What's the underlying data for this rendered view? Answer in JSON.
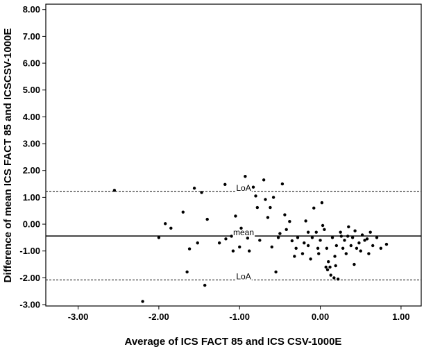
{
  "chart_data": {
    "type": "scatter",
    "xlabel": "Average of ICS FACT 85 and ICS CSV-1000E",
    "ylabel": "Difference of mean ICS FACT 85 and ICSCSV-1000E",
    "xlim": [
      -3.4,
      1.25
    ],
    "ylim": [
      -3.05,
      8.2
    ],
    "x_ticks": [
      "-3.00",
      "-2.00",
      "-1.00",
      "0.00",
      "1.00"
    ],
    "x_tick_values": [
      -3,
      -2,
      -1,
      0,
      1
    ],
    "y_ticks": [
      "8.00",
      "7.00",
      "6.00",
      "5.00",
      "4.00",
      "3.00",
      "2.00",
      "1.00",
      "0.00",
      "-1.00",
      "-2.00",
      "-3.00"
    ],
    "y_tick_values": [
      8,
      7,
      6,
      5,
      4,
      3,
      2,
      1,
      0,
      -1,
      -2,
      -3
    ],
    "lines": [
      {
        "label": "LoA",
        "value": 1.22,
        "style": "dashed",
        "label_x": -0.95
      },
      {
        "label": "mean",
        "value": -0.44,
        "style": "solid",
        "label_x": -0.95
      },
      {
        "label": "LoA",
        "value": -2.08,
        "style": "dashed",
        "label_x": -0.95
      }
    ],
    "grid": false,
    "legend": "none",
    "points": [
      [
        -2.55,
        1.26
      ],
      [
        -2.2,
        -2.88
      ],
      [
        -2.0,
        -0.5
      ],
      [
        -1.92,
        0.02
      ],
      [
        -1.85,
        -0.15
      ],
      [
        -1.7,
        0.45
      ],
      [
        -1.65,
        -1.78
      ],
      [
        -1.62,
        -0.92
      ],
      [
        -1.56,
        1.34
      ],
      [
        -1.52,
        -0.7
      ],
      [
        -1.47,
        1.18
      ],
      [
        -1.43,
        -2.28
      ],
      [
        -1.4,
        0.18
      ],
      [
        -1.25,
        -0.7
      ],
      [
        -1.18,
        1.48
      ],
      [
        -1.17,
        -0.55
      ],
      [
        -1.1,
        -0.45
      ],
      [
        -1.08,
        -1.0
      ],
      [
        -1.05,
        0.3
      ],
      [
        -1.0,
        -0.85
      ],
      [
        -0.98,
        -0.15
      ],
      [
        -0.93,
        1.78
      ],
      [
        -0.9,
        -0.52
      ],
      [
        -0.88,
        -1.0
      ],
      [
        -0.83,
        1.38
      ],
      [
        -0.8,
        1.05
      ],
      [
        -0.78,
        0.62
      ],
      [
        -0.75,
        -0.6
      ],
      [
        -0.7,
        1.65
      ],
      [
        -0.68,
        0.92
      ],
      [
        -0.65,
        0.25
      ],
      [
        -0.62,
        0.62
      ],
      [
        -0.6,
        -0.85
      ],
      [
        -0.58,
        1.0
      ],
      [
        -0.55,
        -1.78
      ],
      [
        -0.52,
        -0.5
      ],
      [
        -0.5,
        -0.35
      ],
      [
        -0.47,
        1.5
      ],
      [
        -0.44,
        0.35
      ],
      [
        -0.42,
        -0.2
      ],
      [
        -0.38,
        0.1
      ],
      [
        -0.35,
        -0.62
      ],
      [
        -0.32,
        -1.2
      ],
      [
        -0.3,
        -0.9
      ],
      [
        -0.28,
        -0.5
      ],
      [
        -0.22,
        -1.1
      ],
      [
        -0.2,
        -0.7
      ],
      [
        -0.18,
        0.12
      ],
      [
        -0.15,
        -0.8
      ],
      [
        -0.1,
        -0.5
      ],
      [
        -0.08,
        0.6
      ],
      [
        -0.05,
        -0.3
      ],
      [
        -0.02,
        -1.1
      ],
      [
        0.0,
        -0.6
      ],
      [
        0.02,
        0.8
      ],
      [
        0.05,
        -0.2
      ],
      [
        0.08,
        -0.9
      ],
      [
        0.1,
        -1.4
      ],
      [
        0.12,
        -1.6
      ],
      [
        0.15,
        -0.5
      ],
      [
        0.18,
        -1.2
      ],
      [
        0.2,
        -0.8
      ],
      [
        0.22,
        -2.05
      ],
      [
        0.25,
        -0.3
      ],
      [
        0.28,
        -0.9
      ],
      [
        0.3,
        -0.6
      ],
      [
        0.32,
        -1.1
      ],
      [
        0.35,
        -0.1
      ],
      [
        0.38,
        -0.8
      ],
      [
        0.4,
        -0.5
      ],
      [
        0.42,
        -1.5
      ],
      [
        0.45,
        -0.9
      ],
      [
        0.48,
        -0.7
      ],
      [
        0.5,
        -1.0
      ],
      [
        0.55,
        -0.6
      ],
      [
        0.6,
        -1.1
      ],
      [
        0.65,
        -0.8
      ],
      [
        0.7,
        -0.5
      ],
      [
        0.75,
        -0.9
      ],
      [
        0.82,
        -0.75
      ],
      [
        -0.03,
        -0.9
      ],
      [
        0.07,
        -1.6
      ],
      [
        0.13,
        -1.9
      ],
      [
        0.17,
        -2.0
      ],
      [
        0.26,
        -0.45
      ],
      [
        0.34,
        -0.45
      ],
      [
        0.43,
        -0.25
      ],
      [
        0.52,
        -0.4
      ],
      [
        0.58,
        -0.55
      ],
      [
        0.62,
        -0.3
      ],
      [
        -0.15,
        -0.3
      ],
      [
        -0.12,
        -1.3
      ],
      [
        0.03,
        -0.05
      ],
      [
        0.09,
        -1.7
      ],
      [
        0.19,
        -1.55
      ]
    ]
  }
}
